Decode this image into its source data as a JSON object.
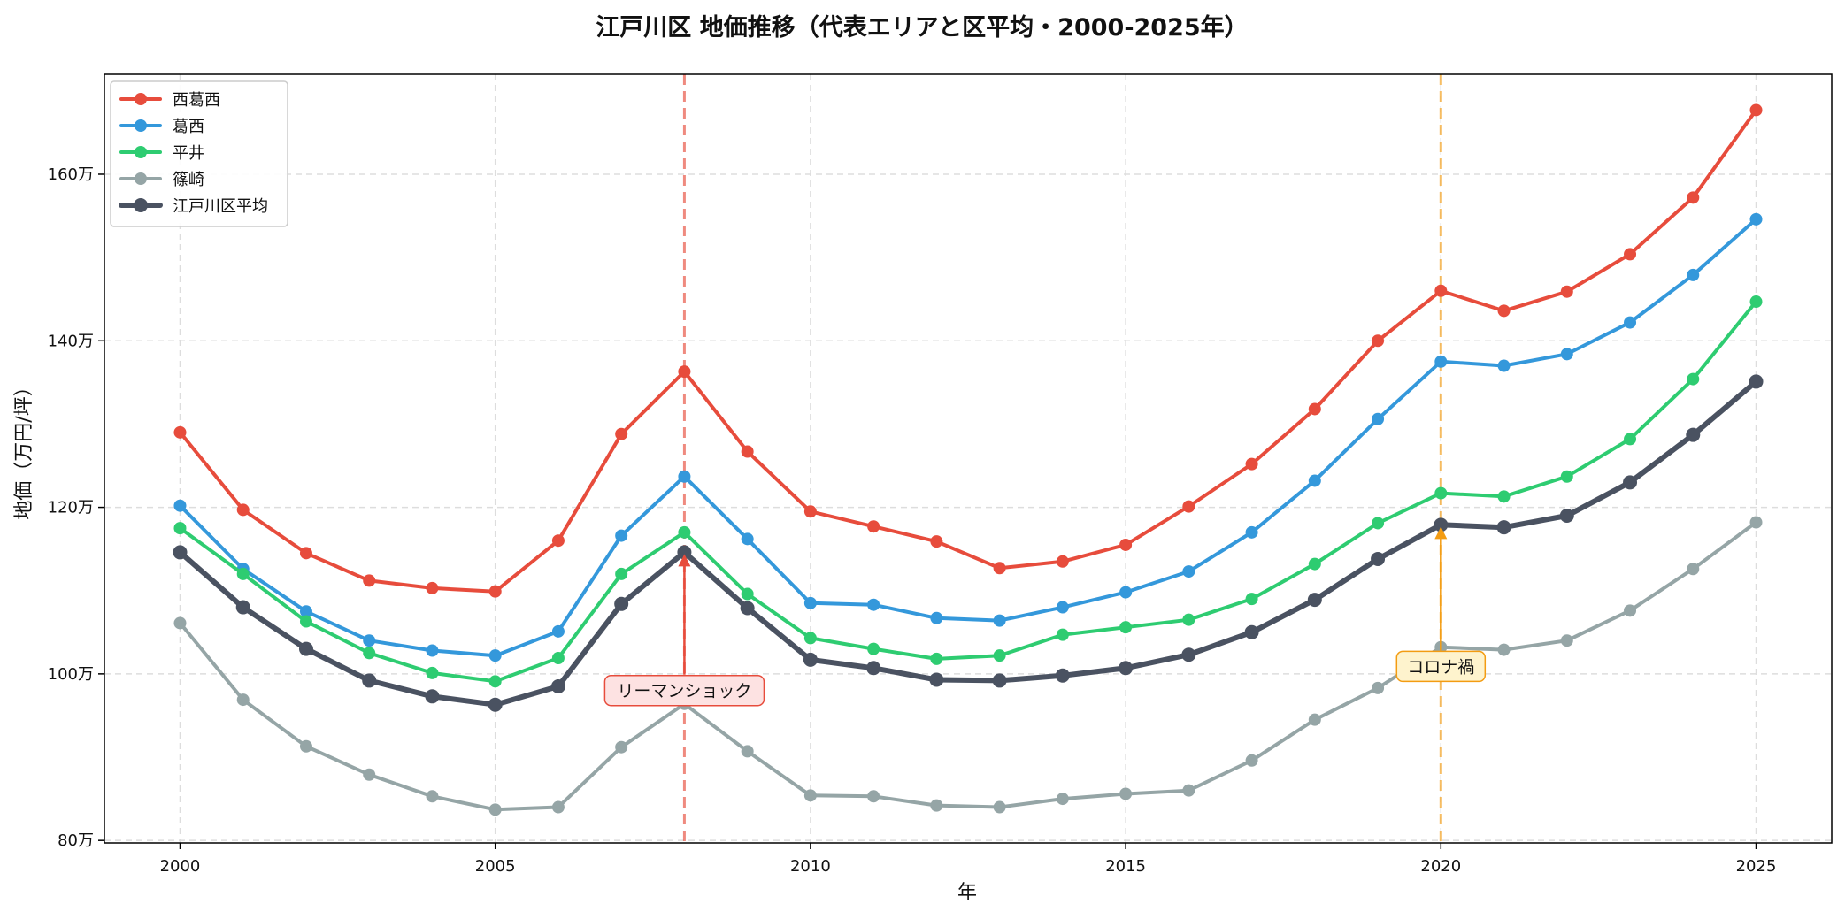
{
  "chart_data": {
    "type": "line",
    "title": "江戸川区 地価推移（代表エリアと区平均・2000-2025年）",
    "xlabel": "年",
    "ylabel": "地価（万円/坪）",
    "xlim": [
      1998.8,
      2026.2
    ],
    "ylim": [
      79.7,
      172.0
    ],
    "x_ticks": [
      2000,
      2005,
      2010,
      2015,
      2020,
      2025
    ],
    "x_tick_labels": [
      "2000",
      "2005",
      "2010",
      "2015",
      "2020",
      "2025"
    ],
    "y_ticks": [
      80,
      100,
      120,
      140,
      160
    ],
    "y_tick_labels": [
      "80万",
      "100万",
      "120万",
      "140万",
      "160万"
    ],
    "grid": true,
    "legend_position": "top-left",
    "x": [
      2000,
      2001,
      2002,
      2003,
      2004,
      2005,
      2006,
      2007,
      2008,
      2009,
      2010,
      2011,
      2012,
      2013,
      2014,
      2015,
      2016,
      2017,
      2018,
      2019,
      2020,
      2021,
      2022,
      2023,
      2024,
      2025
    ],
    "series": [
      {
        "name": "西葛西",
        "color": "#e74c3c",
        "width": 4,
        "values": [
          129.0,
          119.7,
          114.5,
          111.2,
          110.3,
          109.9,
          116.0,
          128.8,
          136.3,
          126.7,
          119.5,
          117.7,
          115.9,
          112.7,
          113.5,
          115.5,
          120.1,
          125.2,
          131.8,
          140.0,
          146.0,
          143.6,
          145.9,
          150.4,
          157.2,
          167.7
        ]
      },
      {
        "name": "葛西",
        "color": "#3498db",
        "width": 4,
        "values": [
          120.2,
          112.6,
          107.5,
          104.0,
          102.8,
          102.2,
          105.1,
          116.6,
          123.7,
          116.2,
          108.5,
          108.3,
          106.7,
          106.4,
          108.0,
          109.8,
          112.3,
          117.0,
          123.2,
          130.6,
          137.5,
          137.0,
          138.4,
          142.2,
          147.9,
          154.6
        ]
      },
      {
        "name": "平井",
        "color": "#2ecc71",
        "width": 4,
        "values": [
          117.5,
          112.0,
          106.3,
          102.5,
          100.1,
          99.1,
          101.9,
          112.0,
          117.0,
          109.6,
          104.3,
          103.0,
          101.8,
          102.2,
          104.7,
          105.6,
          106.5,
          109.0,
          113.2,
          118.1,
          121.7,
          121.3,
          123.7,
          128.2,
          135.4,
          144.7
        ]
      },
      {
        "name": "篠崎",
        "color": "#95a5a6",
        "width": 4,
        "values": [
          106.1,
          96.9,
          91.3,
          87.9,
          85.3,
          83.7,
          84.0,
          91.2,
          96.4,
          90.7,
          85.4,
          85.3,
          84.2,
          84.0,
          85.0,
          85.6,
          86.0,
          89.6,
          94.5,
          98.3,
          103.2,
          102.9,
          104.0,
          107.6,
          112.6,
          118.2
        ]
      },
      {
        "name": "江戸川区平均",
        "color": "#4a5261",
        "width": 6,
        "values": [
          114.6,
          108.0,
          103.0,
          99.2,
          97.3,
          96.3,
          98.5,
          108.4,
          114.6,
          107.9,
          101.7,
          100.7,
          99.3,
          99.2,
          99.8,
          100.7,
          102.3,
          105.0,
          108.9,
          113.8,
          117.9,
          117.6,
          119.0,
          123.0,
          128.7,
          135.1
        ]
      }
    ],
    "annotations": [
      {
        "label": "リーマンショック",
        "x": 2008,
        "color": "#e74c3c",
        "bg": "#fde2e2",
        "text_y": 98.0,
        "arrow_to_y": 114.6
      },
      {
        "label": "コロナ禍",
        "x": 2020,
        "color": "#f39c12",
        "bg": "#fef3cd",
        "text_y": 100.9,
        "arrow_to_y": 117.9
      }
    ]
  }
}
